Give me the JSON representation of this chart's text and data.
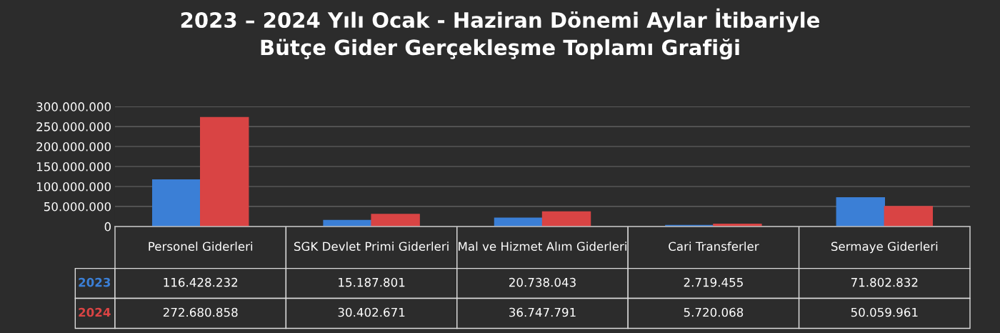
{
  "chart_data": {
    "type": "bar",
    "title": "2023 – 2024 Yılı Ocak - Haziran Dönemi Aylar İtibariyle\nBütçe Gider Gerçekleşme Toplamı Grafiği",
    "categories": [
      "Personel Giderleri",
      "SGK Devlet Primi Giderleri",
      "Mal ve Hizmet Alım Giderleri",
      "Cari Transferler",
      "Sermaye Giderleri"
    ],
    "series": [
      {
        "name": "2023",
        "color": "#3b7fd6",
        "values": [
          116428232,
          15187801,
          20738043,
          2719455,
          71802832
        ],
        "value_labels": [
          "116.428.232",
          "15.187.801",
          "20.738.043",
          "2.719.455",
          "71.802.832"
        ]
      },
      {
        "name": "2024",
        "color": "#d94444",
        "values": [
          272680858,
          30402671,
          36747791,
          5720068,
          50059961
        ],
        "value_labels": [
          "272.680.858",
          "30.402.671",
          "36.747.791",
          "5.720.068",
          "50.059.961"
        ]
      }
    ],
    "ylim": [
      0,
      300000000
    ],
    "yticks": [
      0,
      {
        "value": 50000000,
        "label": "50.000.000"
      },
      {
        "value": 100000000,
        "label": "100.000.000"
      },
      {
        "value": 150000000,
        "label": "150.000.000"
      },
      {
        "value": 200000000,
        "label": "200.000.000"
      },
      {
        "value": 250000000,
        "label": "250.000.000"
      },
      {
        "value": 300000000,
        "label": "300.000.000"
      }
    ],
    "grid": "y"
  }
}
